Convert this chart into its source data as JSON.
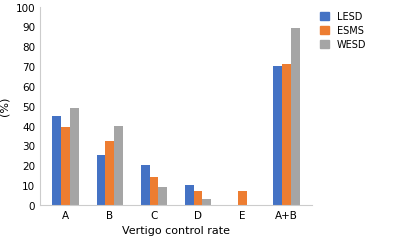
{
  "categories": [
    "A",
    "B",
    "C",
    "D",
    "E",
    "A+B"
  ],
  "series": {
    "LESD": [
      45,
      25,
      20,
      10,
      0,
      70
    ],
    "ESMS": [
      39,
      32,
      14,
      7,
      7,
      71
    ],
    "WESD": [
      49,
      40,
      9,
      3,
      0,
      89
    ]
  },
  "colors": {
    "LESD": "#4472C4",
    "ESMS": "#ED7D31",
    "WESD": "#A5A5A5"
  },
  "ylabel": "(%)",
  "xlabel": "Vertigo control rate",
  "ylim": [
    0,
    100
  ],
  "yticks": [
    0,
    10,
    20,
    30,
    40,
    50,
    60,
    70,
    80,
    90,
    100
  ],
  "legend_labels": [
    "LESD",
    "ESMS",
    "WESD"
  ],
  "bar_width": 0.2,
  "figsize": [
    4.0,
    2.51
  ],
  "dpi": 100
}
